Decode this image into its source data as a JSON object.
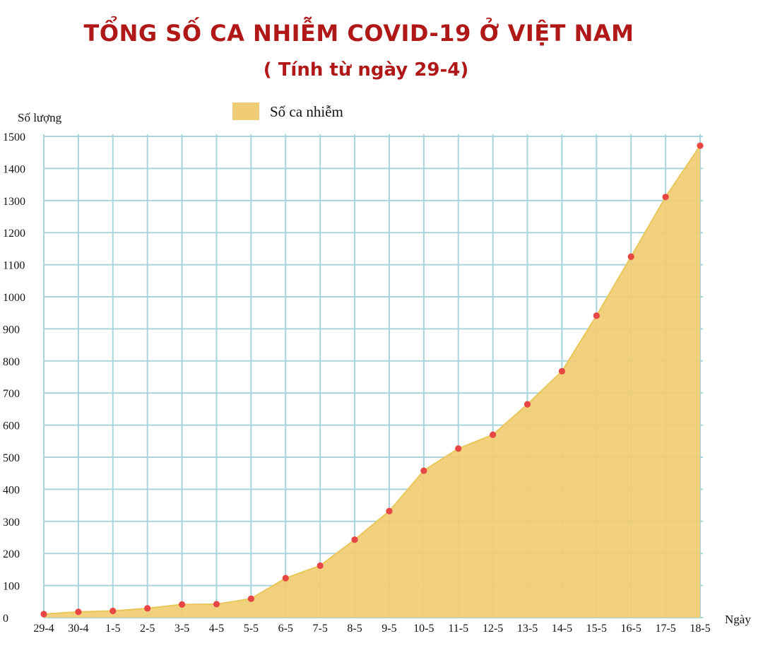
{
  "header": {
    "title": "TỔNG SỐ CA NHIỄM COVID-19 Ở VIỆT NAM",
    "subtitle": "( Tính từ ngày 29-4)"
  },
  "colors": {
    "title": "#b01818",
    "area_fill": "#f0cd74",
    "area_stroke": "#e9c75a",
    "point": "#e84545",
    "grid": "#a9d4dc"
  },
  "chart_data": {
    "type": "area",
    "title": "TỔNG SỐ CA NHIỄM COVID-19 Ở VIỆT NAM",
    "subtitle": "( Tính từ ngày 29-4)",
    "xlabel": "Ngày",
    "ylabel": "Số lượng",
    "ylim": [
      0,
      1500
    ],
    "yticks": [
      0,
      100,
      200,
      300,
      400,
      500,
      600,
      700,
      800,
      900,
      1000,
      1100,
      1200,
      1300,
      1400,
      1500
    ],
    "grid": true,
    "legend_position": "top-center",
    "categories": [
      "29-4",
      "30-4",
      "1-5",
      "2-5",
      "3-5",
      "4-5",
      "5-5",
      "6-5",
      "7-5",
      "8-5",
      "9-5",
      "10-5",
      "11-5",
      "12-5",
      "13-5",
      "14-5",
      "15-5",
      "16-5",
      "17-5",
      "18-5"
    ],
    "series": [
      {
        "name": "Số ca nhiễm",
        "values": [
          11,
          18,
          21,
          29,
          41,
          42,
          59,
          123,
          162,
          243,
          332,
          458,
          527,
          570,
          665,
          768,
          941,
          1125,
          1311,
          1471
        ]
      }
    ]
  }
}
